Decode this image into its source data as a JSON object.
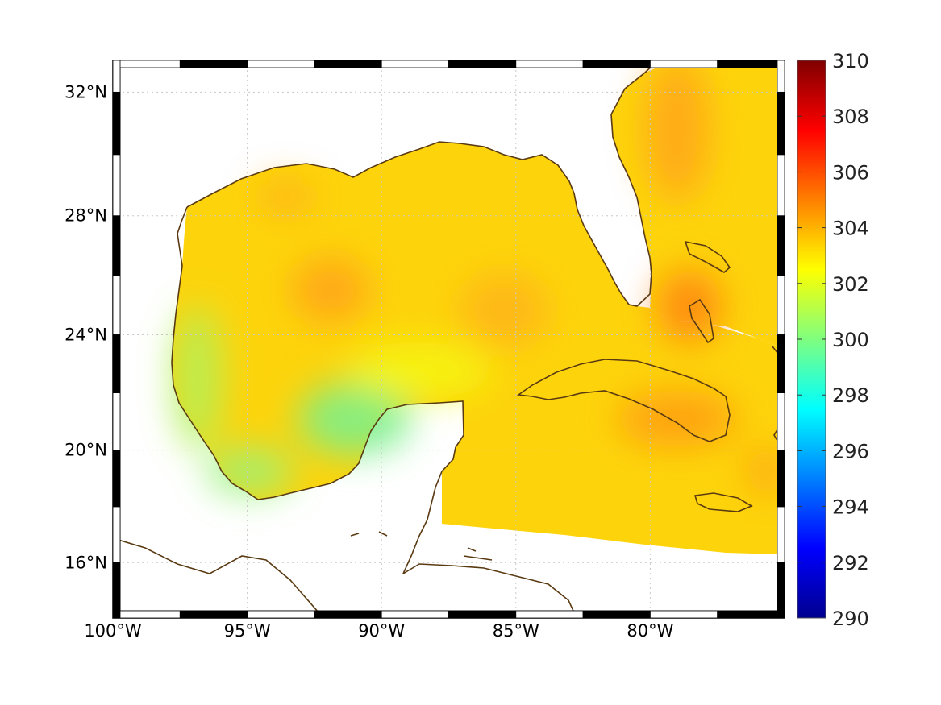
{
  "map": {
    "projection": "mercator",
    "lon_range": [
      -100,
      -75
    ],
    "lat_range": [
      14,
      33
    ],
    "coastline_color": "#5a3a12",
    "grid": "dotted",
    "lon_ticks": [
      {
        "value": -100,
        "label": "100°W"
      },
      {
        "value": -95,
        "label": "95°W"
      },
      {
        "value": -90,
        "label": "90°W"
      },
      {
        "value": -85,
        "label": "85°W"
      },
      {
        "value": -80,
        "label": "80°W"
      }
    ],
    "lat_ticks": [
      {
        "value": 16,
        "label": "16°N"
      },
      {
        "value": 20,
        "label": "20°N"
      },
      {
        "value": 24,
        "label": "24°N"
      },
      {
        "value": 28,
        "label": "28°N"
      },
      {
        "value": 32,
        "label": "32°N"
      }
    ],
    "field_typical_value": 303,
    "warm_spots": [
      {
        "lon": -92.1,
        "lat": 25.7,
        "value": 304.6
      },
      {
        "lon": -85.5,
        "lat": 24.8,
        "value": 304.2
      },
      {
        "lon": -78.3,
        "lat": 25.0,
        "value": 305.0
      },
      {
        "lon": -79.0,
        "lat": 31.5,
        "value": 304.5
      },
      {
        "lon": -81.5,
        "lat": 21.2,
        "value": 304.3
      },
      {
        "lon": -93.5,
        "lat": 28.6,
        "value": 304.0
      }
    ],
    "cool_spots": [
      {
        "lon": -89.8,
        "lat": 21.3,
        "value": 300.4
      },
      {
        "lon": -95.2,
        "lat": 19.0,
        "value": 301.3
      },
      {
        "lon": -97.3,
        "lat": 23.0,
        "value": 301.6
      }
    ]
  },
  "colorbar": {
    "colormap": "jet",
    "min": 290,
    "max": 310,
    "tick_labels": [
      "310",
      "308",
      "306",
      "304",
      "302",
      "300",
      "298",
      "296",
      "294",
      "292",
      "290"
    ]
  },
  "colors": {
    "land": "#ffffff",
    "frame_dark": "#000000",
    "frame_light": "#ffffff"
  }
}
